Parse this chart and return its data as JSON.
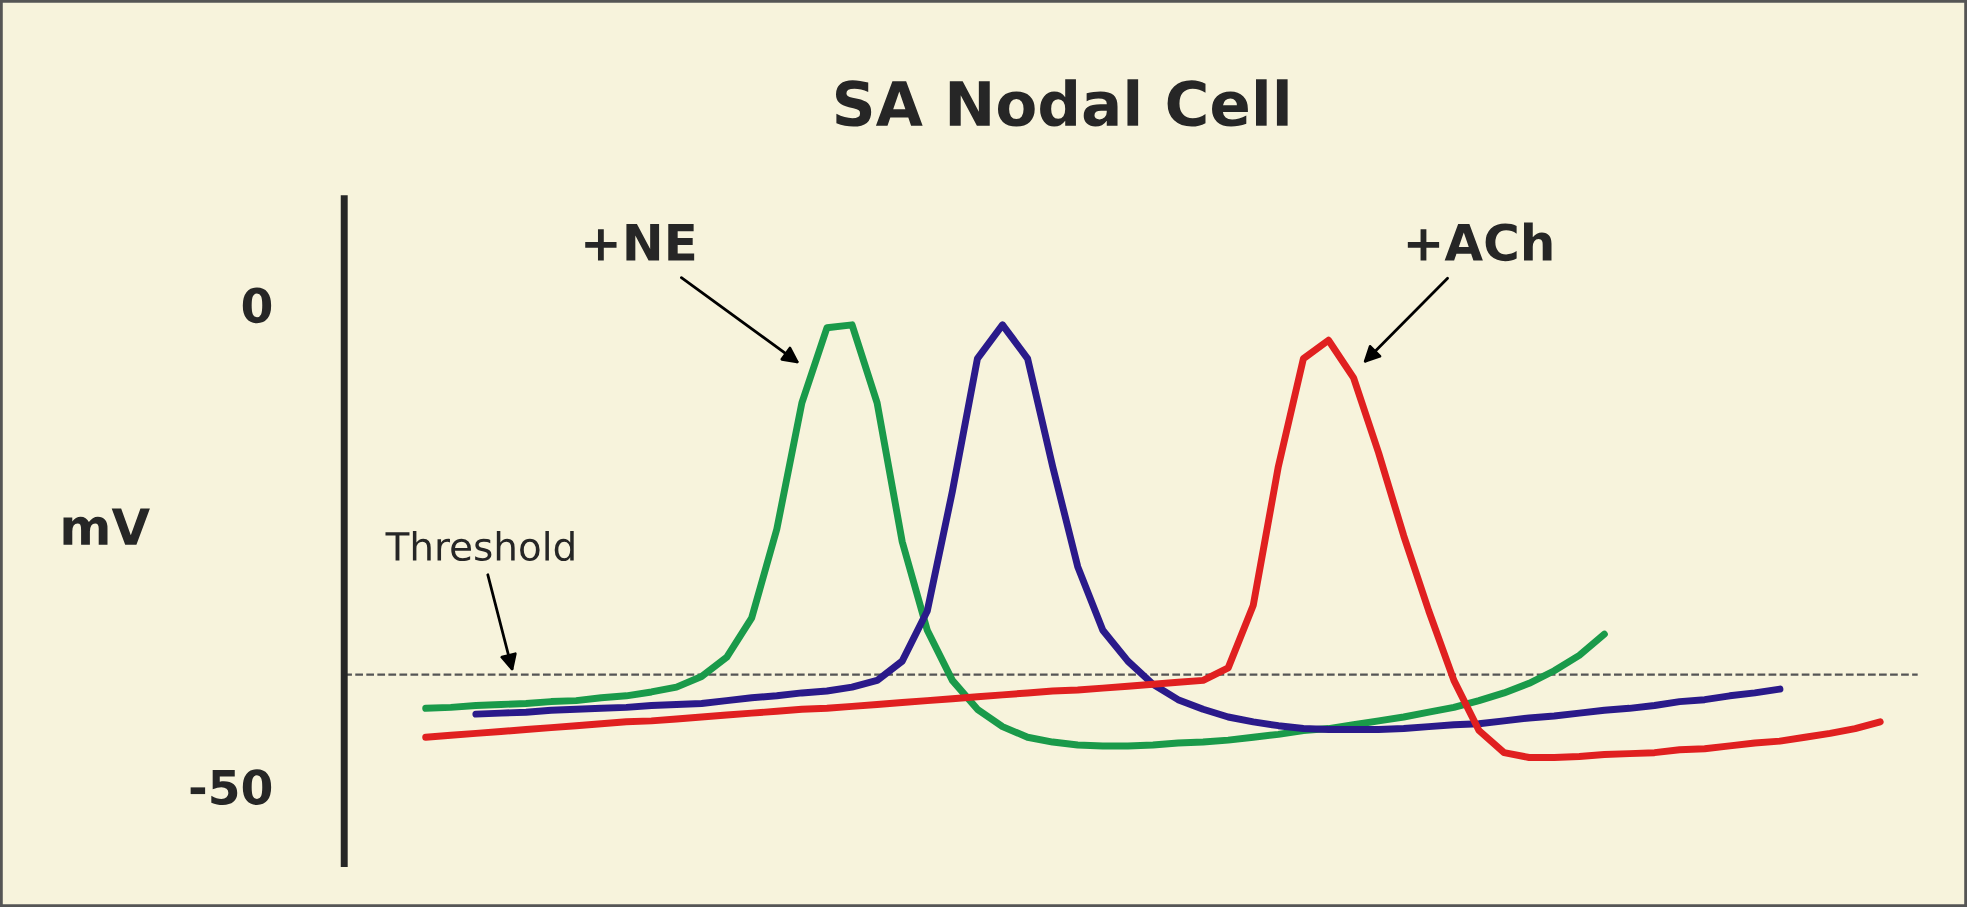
{
  "chart_data": {
    "type": "line",
    "title": "SA Nodal Cell",
    "ylabel": "mV",
    "categories": [
      null,
      null,
      null,
      null,
      null,
      null,
      null,
      null,
      null,
      null,
      null,
      null,
      null,
      null,
      null,
      null,
      null,
      null,
      null,
      null,
      null,
      null,
      null,
      null,
      null,
      null,
      null,
      null,
      null,
      null,
      null,
      null,
      null,
      null,
      null,
      null,
      null,
      null,
      null,
      null,
      null,
      null,
      null,
      null,
      null,
      null,
      null,
      null,
      null,
      null,
      null,
      null,
      null,
      null,
      null,
      null,
      null,
      null,
      null,
      null
    ],
    "series": [
      {
        "color": "#1a9a4a",
        "values": [
          -41.9,
          -41.8,
          -41.6,
          -41.5,
          -41.4,
          -41.2,
          -41.1,
          -40.8,
          -40.6,
          -40.2,
          -39.7,
          -38.6,
          -36.6,
          -32.5,
          -23.3,
          -10.2,
          -2.4,
          -2.1,
          -10.2,
          -24.6,
          -33.8,
          -39,
          -42,
          -43.8,
          -44.9,
          -45.4,
          -45.7,
          -45.8,
          -45.8,
          -45.7,
          -45.5,
          -45.4,
          -45.2,
          -44.9,
          -44.6,
          -44.2,
          -44,
          -43.6,
          -43.2,
          -42.8,
          -42.3,
          -41.8,
          -41.1,
          -40.3,
          -39.3,
          -38,
          -36.4,
          -34.2,
          null,
          null,
          null,
          null,
          null,
          null,
          null,
          null,
          null,
          null,
          null,
          null
        ]
      },
      {
        "color": "#2a1a8a",
        "values": [
          null,
          null,
          -42.5,
          -42.4,
          -42.3,
          -42.1,
          -42,
          -41.9,
          -41.8,
          -41.6,
          -41.5,
          -41.4,
          -41.1,
          -40.8,
          -40.6,
          -40.3,
          -40.1,
          -39.7,
          -39,
          -37,
          -31.8,
          -19.4,
          -5.6,
          -2.1,
          -5.6,
          -16.8,
          -27.2,
          -33.8,
          -37,
          -39.4,
          -41,
          -42,
          -42.8,
          -43.3,
          -43.7,
          -44,
          -44.1,
          -44.1,
          -44.1,
          -44,
          -43.8,
          -43.6,
          -43.5,
          -43.2,
          -42.9,
          -42.7,
          -42.4,
          -42.1,
          -41.9,
          -41.6,
          -41.2,
          -41,
          -40.6,
          -40.3,
          -39.9,
          null,
          null,
          null,
          null,
          null
        ]
      },
      {
        "color": "#e02020",
        "values": [
          -44.9,
          -44.7,
          -44.5,
          -44.3,
          -44.1,
          -43.9,
          -43.7,
          -43.5,
          -43.3,
          -43.2,
          -43,
          -42.8,
          -42.6,
          -42.4,
          -42.2,
          -42,
          -41.9,
          -41.7,
          -41.5,
          -41.3,
          -41.1,
          -40.9,
          -40.7,
          -40.5,
          -40.3,
          -40.1,
          -40,
          -39.8,
          -39.6,
          -39.4,
          -39.2,
          -39,
          -37.7,
          -31.2,
          -16.8,
          -5.6,
          -3.7,
          -7.6,
          -15.4,
          -24,
          -31.8,
          -39,
          -44.2,
          -46.5,
          -47,
          -47,
          -46.9,
          -46.7,
          -46.6,
          -46.5,
          -46.2,
          -46.1,
          -45.8,
          -45.5,
          -45.3,
          -44.9,
          -44.5,
          -44,
          -43.3,
          null
        ]
      }
    ],
    "ylim": [
      -58,
      11
    ],
    "yticks": [
      0,
      -50
    ],
    "grid": false,
    "legend": false,
    "tick_labels": "y",
    "ref_lines": [
      {
        "axis": "y",
        "value": -38.4,
        "label": "Threshold",
        "color": "#555555",
        "line_style": "dashed"
      }
    ],
    "annotations": [
      "+NE",
      "+ACh"
    ]
  }
}
